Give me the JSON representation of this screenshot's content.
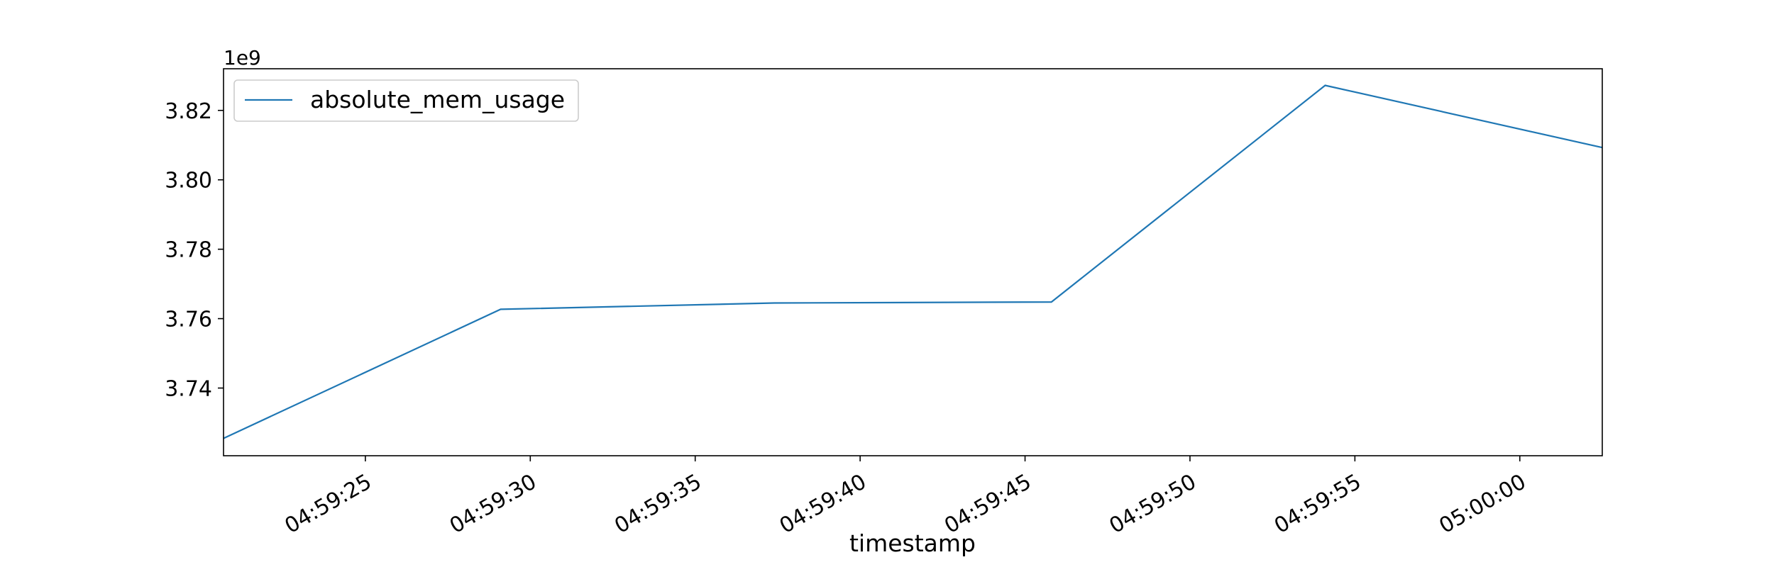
{
  "chart_data": {
    "type": "line",
    "title": "",
    "xlabel": "timestamp",
    "ylabel": "",
    "y_offset_label": "1e9",
    "x_tick_labels": [
      "04:59:25",
      "04:59:30",
      "04:59:35",
      "04:59:40",
      "04:59:45",
      "04:59:50",
      "04:59:55",
      "05:00:00"
    ],
    "x_range": [
      "04:59:20.7",
      "05:00:02.5"
    ],
    "y_tick_values": [
      3.74,
      3.76,
      3.78,
      3.8,
      3.82
    ],
    "y_tick_labels": [
      "3.74",
      "3.76",
      "3.78",
      "3.80",
      "3.82"
    ],
    "ylim": [
      3.7205,
      3.832
    ],
    "grid": false,
    "legend_position": "upper-left",
    "series": [
      {
        "name": "absolute_mem_usage",
        "color": "#1f77b4",
        "x": [
          "04:59:20.7",
          "04:59:29.1",
          "04:59:37.4",
          "04:59:45.8",
          "04:59:54.1",
          "05:00:02.5"
        ],
        "y": [
          3.7255,
          3.7627,
          3.7645,
          3.7648,
          3.8272,
          3.8093
        ]
      }
    ]
  }
}
